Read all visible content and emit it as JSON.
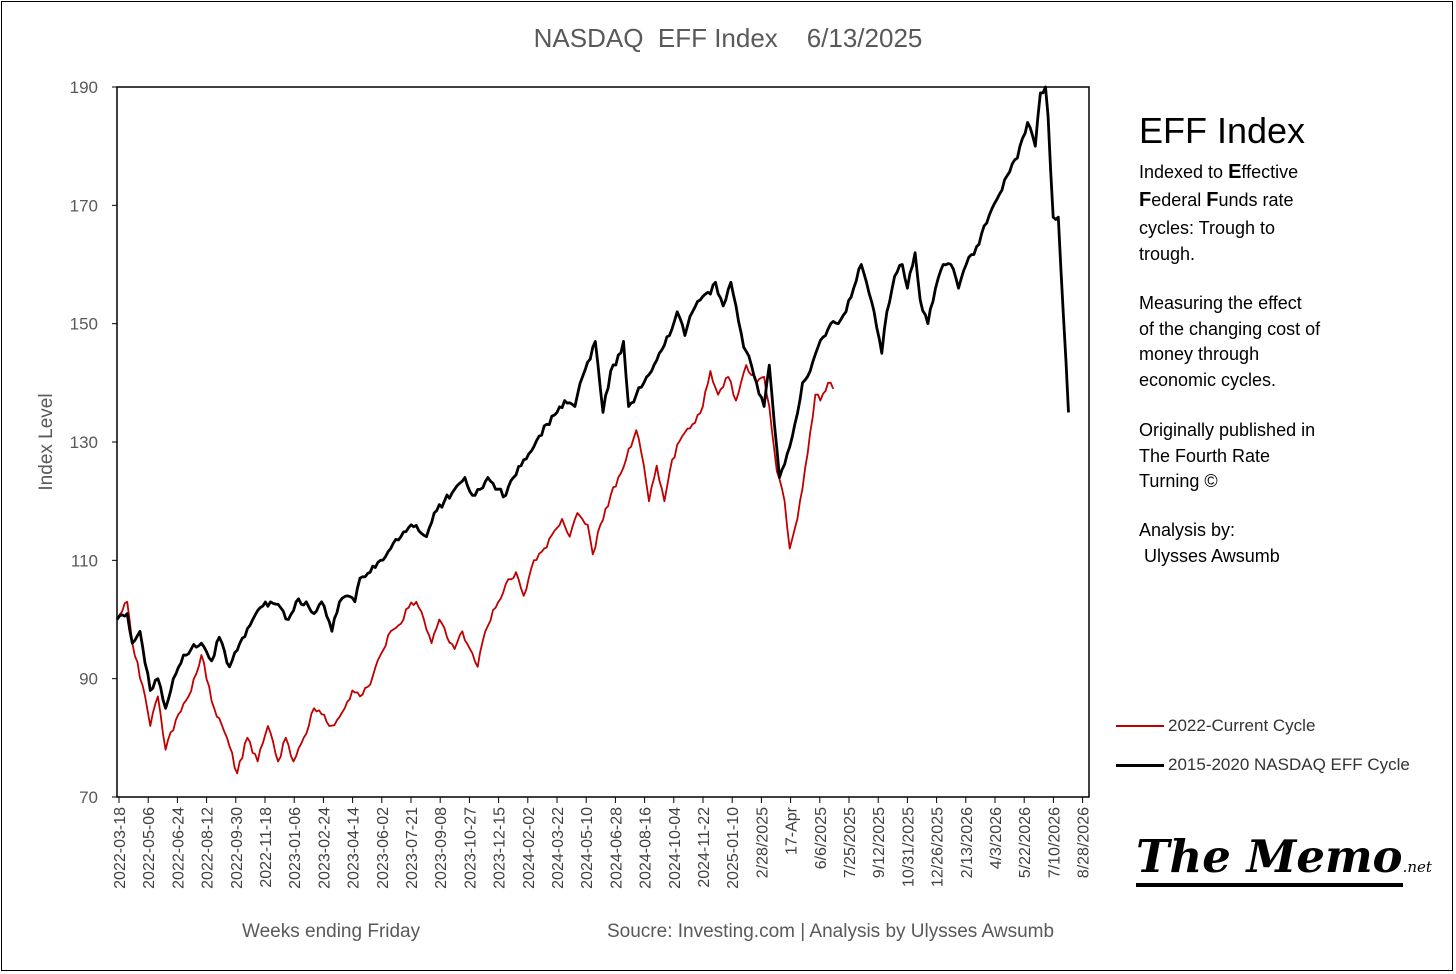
{
  "chart_data": {
    "type": "line",
    "title": "NASDAQ  EFF Index    6/13/2025",
    "xlabel": "Weeks ending Friday",
    "ylabel": "Index Level",
    "ylim": [
      70,
      190
    ],
    "yticks": [
      70,
      90,
      110,
      130,
      150,
      170,
      190
    ],
    "grid": false,
    "x_tick_labels": [
      "2022-03-18",
      "2022-05-06",
      "2022-06-24",
      "2022-08-12",
      "2022-09-30",
      "2022-11-18",
      "2023-01-06",
      "2023-02-24",
      "2023-04-14",
      "2023-06-02",
      "2023-07-21",
      "2023-09-08",
      "2023-10-27",
      "2023-12-15",
      "2024-02-02",
      "2024-03-22",
      "2024-05-10",
      "2024-06-28",
      "2024-08-16",
      "2024-10-04",
      "2024-11-22",
      "2025-01-10",
      "2/28/2025",
      "17-Apr",
      "6/6/2025",
      "7/25/2025",
      "9/12/2025",
      "10/31/2025",
      "12/26/2025",
      "2/13/2026",
      "4/3/2026",
      "5/22/2026",
      "7/10/2026",
      "8/28/2026"
    ],
    "series": [
      {
        "name": "2022-Current Cycle",
        "color": "#c00000",
        "keypoints": [
          [
            0,
            100
          ],
          [
            4,
            103
          ],
          [
            6,
            96
          ],
          [
            11,
            87
          ],
          [
            13,
            82
          ],
          [
            16,
            87
          ],
          [
            19,
            78
          ],
          [
            24,
            84
          ],
          [
            28,
            87
          ],
          [
            33,
            94
          ],
          [
            38,
            85
          ],
          [
            43,
            80
          ],
          [
            47,
            74
          ],
          [
            51,
            80
          ],
          [
            55,
            76
          ],
          [
            59,
            82
          ],
          [
            63,
            76
          ],
          [
            66,
            80
          ],
          [
            69,
            76
          ],
          [
            73,
            80
          ],
          [
            77,
            85
          ],
          [
            80,
            84
          ],
          [
            83,
            82
          ],
          [
            86,
            83
          ],
          [
            89,
            85
          ],
          [
            92,
            88
          ],
          [
            95,
            87
          ],
          [
            99,
            89
          ],
          [
            103,
            94
          ],
          [
            107,
            98
          ],
          [
            110,
            99
          ],
          [
            114,
            102
          ],
          [
            117,
            103
          ],
          [
            120,
            100
          ],
          [
            123,
            96
          ],
          [
            126,
            100
          ],
          [
            129,
            97
          ],
          [
            132,
            95
          ],
          [
            135,
            98
          ],
          [
            138,
            95
          ],
          [
            141,
            92
          ],
          [
            144,
            98
          ],
          [
            148,
            102
          ],
          [
            152,
            106
          ],
          [
            156,
            108
          ],
          [
            159,
            104
          ],
          [
            163,
            110
          ],
          [
            167,
            112
          ],
          [
            171,
            115
          ],
          [
            174,
            117
          ],
          [
            177,
            114
          ],
          [
            180,
            118
          ],
          [
            184,
            116
          ],
          [
            186,
            111
          ],
          [
            189,
            116
          ],
          [
            193,
            121
          ],
          [
            196,
            124
          ],
          [
            199,
            127
          ],
          [
            203,
            132
          ],
          [
            206,
            126
          ],
          [
            208,
            120
          ],
          [
            211,
            126
          ],
          [
            214,
            120
          ],
          [
            217,
            127
          ],
          [
            221,
            131
          ],
          [
            225,
            133
          ],
          [
            229,
            136
          ],
          [
            232,
            142
          ],
          [
            235,
            138
          ],
          [
            239,
            141
          ],
          [
            242,
            137
          ],
          [
            246,
            143
          ],
          [
            250,
            140
          ],
          [
            253,
            141
          ],
          [
            255,
            136
          ],
          [
            258,
            125
          ],
          [
            261,
            120
          ],
          [
            263,
            112
          ],
          [
            266,
            117
          ],
          [
            270,
            128
          ],
          [
            273,
            138
          ],
          [
            275,
            137
          ],
          [
            278,
            140
          ],
          [
            280,
            139
          ]
        ]
      },
      {
        "name": "2015-2020 NASDAQ EFF Cycle",
        "color": "#000000",
        "keypoints": [
          [
            0,
            100
          ],
          [
            4,
            101
          ],
          [
            6,
            96
          ],
          [
            9,
            98
          ],
          [
            13,
            88
          ],
          [
            16,
            90
          ],
          [
            19,
            85
          ],
          [
            22,
            90
          ],
          [
            26,
            94
          ],
          [
            29,
            95
          ],
          [
            33,
            96
          ],
          [
            37,
            93
          ],
          [
            40,
            97
          ],
          [
            44,
            92
          ],
          [
            48,
            96
          ],
          [
            52,
            99
          ],
          [
            56,
            102
          ],
          [
            60,
            103
          ],
          [
            64,
            102
          ],
          [
            67,
            100
          ],
          [
            70,
            103
          ],
          [
            74,
            103
          ],
          [
            77,
            101
          ],
          [
            80,
            103
          ],
          [
            84,
            98
          ],
          [
            87,
            103
          ],
          [
            90,
            104
          ],
          [
            93,
            103
          ],
          [
            95,
            107
          ],
          [
            99,
            108
          ],
          [
            103,
            110
          ],
          [
            107,
            112
          ],
          [
            111,
            114
          ],
          [
            115,
            116
          ],
          [
            118,
            115
          ],
          [
            121,
            114
          ],
          [
            124,
            118
          ],
          [
            128,
            120
          ],
          [
            132,
            122
          ],
          [
            136,
            124
          ],
          [
            139,
            121
          ],
          [
            142,
            122
          ],
          [
            145,
            124
          ],
          [
            148,
            122
          ],
          [
            152,
            121
          ],
          [
            155,
            124
          ],
          [
            158,
            126
          ],
          [
            161,
            128
          ],
          [
            165,
            131
          ],
          [
            168,
            133
          ],
          [
            172,
            135
          ],
          [
            175,
            137
          ],
          [
            179,
            136
          ],
          [
            182,
            141
          ],
          [
            185,
            144
          ],
          [
            187,
            147
          ],
          [
            190,
            135
          ],
          [
            193,
            142
          ],
          [
            195,
            143
          ],
          [
            198,
            147
          ],
          [
            200,
            136
          ],
          [
            203,
            138
          ],
          [
            206,
            140
          ],
          [
            209,
            142
          ],
          [
            212,
            145
          ],
          [
            216,
            148
          ],
          [
            219,
            152
          ],
          [
            222,
            148
          ],
          [
            225,
            152
          ],
          [
            228,
            154
          ],
          [
            232,
            155
          ],
          [
            234,
            157
          ],
          [
            237,
            153
          ],
          [
            240,
            157
          ],
          [
            242,
            153
          ],
          [
            245,
            146
          ],
          [
            248,
            143
          ],
          [
            250,
            140
          ],
          [
            253,
            136
          ],
          [
            255,
            143
          ],
          [
            257,
            133
          ],
          [
            259,
            124
          ],
          [
            262,
            128
          ],
          [
            265,
            133
          ],
          [
            268,
            140
          ],
          [
            271,
            142
          ],
          [
            274,
            146
          ],
          [
            277,
            148
          ],
          [
            279,
            150
          ],
          [
            282,
            150
          ],
          [
            285,
            152
          ],
          [
            288,
            156
          ],
          [
            291,
            160
          ],
          [
            293,
            157
          ],
          [
            296,
            152
          ],
          [
            299,
            145
          ],
          [
            301,
            152
          ],
          [
            304,
            158
          ],
          [
            307,
            160
          ],
          [
            309,
            156
          ],
          [
            312,
            162
          ],
          [
            314,
            154
          ],
          [
            317,
            150
          ],
          [
            320,
            156
          ],
          [
            323,
            160
          ],
          [
            326,
            160
          ],
          [
            329,
            156
          ],
          [
            332,
            160
          ],
          [
            336,
            163
          ],
          [
            340,
            167
          ],
          [
            344,
            171
          ],
          [
            348,
            175
          ],
          [
            352,
            178
          ],
          [
            356,
            184
          ],
          [
            359,
            180
          ],
          [
            361,
            189
          ],
          [
            363,
            190
          ],
          [
            364,
            185
          ],
          [
            366,
            168
          ],
          [
            368,
            168
          ],
          [
            372,
            135
          ]
        ]
      }
    ],
    "x_count": 380,
    "legend": "right"
  },
  "panel": {
    "heading": "EFF Index",
    "lines": [
      {
        "bold": "",
        "text": "Indexed to "
      },
      {
        "bold": "E",
        "text": "ffective"
      },
      {
        "bold": "F",
        "text": "ederal "
      },
      {
        "bold": "F",
        "text": "unds rate"
      }
    ],
    "line1_a": "Indexed to ",
    "line1_b": "E",
    "line1_c": "ffective",
    "line2_a": "F",
    "line2_b": "ederal ",
    "line2_c": "F",
    "line2_d": "unds rate",
    "line3": "cycles: Trough to\ntrough.",
    "para2": "Measuring the effect\nof the changing cost of\nmoney through\neconomic cycles.",
    "para3": "Originally published in\nThe Fourth Rate\nTurning ©",
    "para4": "Analysis by:\n Ulysses Awsumb"
  },
  "legend_labels": {
    "red": "2022-Current Cycle",
    "black": "2015-2020 NASDAQ EFF Cycle"
  },
  "footer": {
    "xlabel": "Weeks ending Friday",
    "source": "Soucre: Investing.com  |  Analysis by Ulysses Awsumb"
  },
  "logo": {
    "main": "The Memo",
    "suffix": ".net"
  }
}
